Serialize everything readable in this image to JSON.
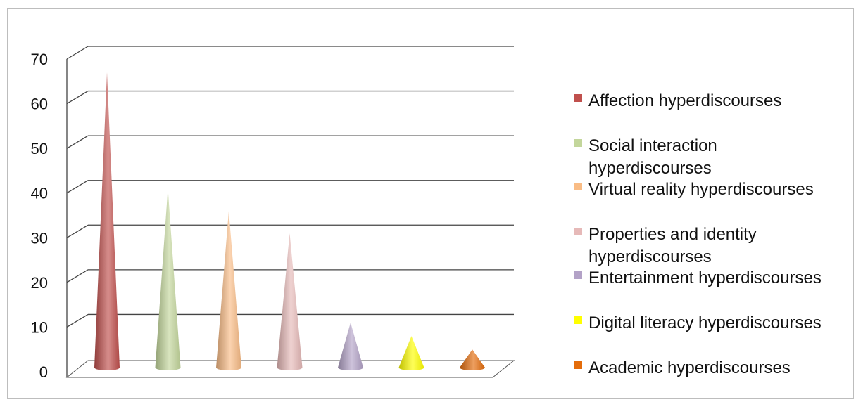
{
  "chart_data": {
    "type": "bar",
    "bar_shape": "cone",
    "title": "",
    "xlabel": "",
    "ylabel": "",
    "ylim": [
      0,
      70
    ],
    "yticks": [
      0,
      10,
      20,
      30,
      40,
      50,
      60,
      70
    ],
    "grid": true,
    "legend_position": "right",
    "categories": [
      "Affection hyperdiscourses",
      "Social interaction hyperdiscourses",
      "Virtual reality hyperdiscourses",
      "Properties and identity hyperdiscourses",
      "Entertainment hyperdiscourses",
      "Digital literacy hyperdiscourses",
      "Academic hyperdiscourses"
    ],
    "legend_lines": [
      [
        "Affection hyperdiscourses"
      ],
      [
        "Social interaction",
        "hyperdiscourses"
      ],
      [
        "Virtual reality hyperdiscourses"
      ],
      [
        "Properties and identity",
        "hyperdiscourses"
      ],
      [
        "Entertainment hyperdiscourses"
      ],
      [
        "Digital literacy hyperdiscourses"
      ],
      [
        "Academic hyperdiscourses"
      ]
    ],
    "values": [
      67,
      41,
      36,
      31,
      11,
      8,
      5
    ],
    "colors": [
      "#c0504d",
      "#c3d69b",
      "#f9bc85",
      "#e6b9b8",
      "#b3a2c7",
      "#ffff00",
      "#e46c0a"
    ]
  }
}
